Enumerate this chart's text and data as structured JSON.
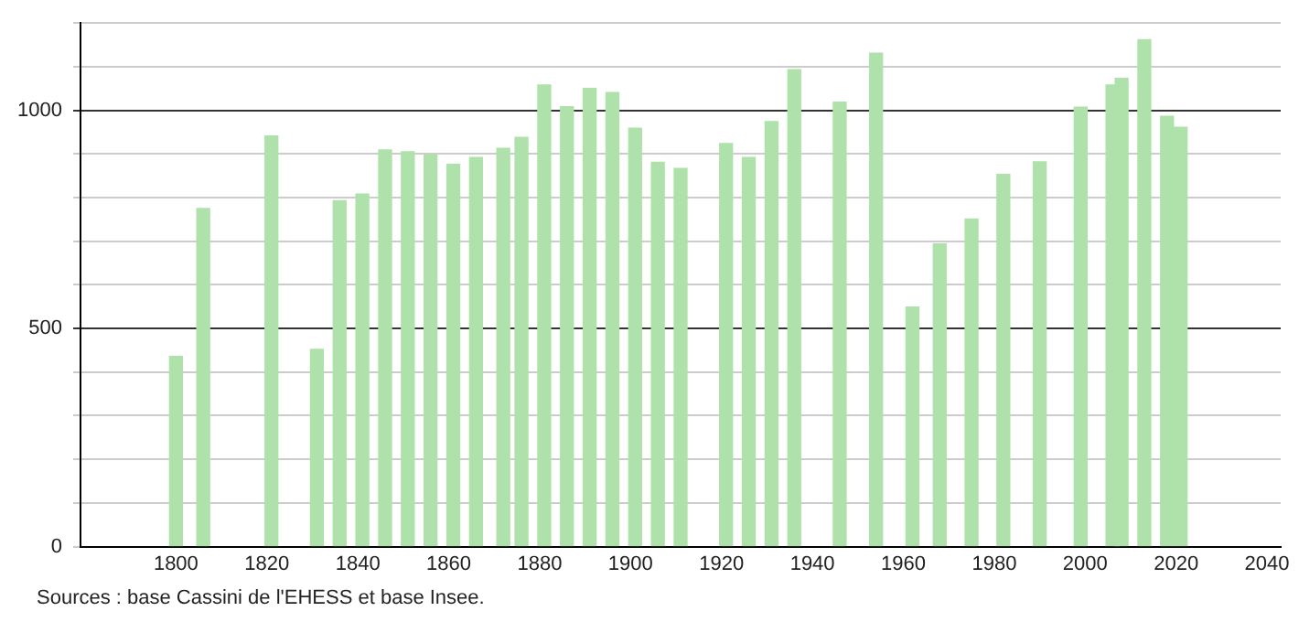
{
  "chart_data": {
    "type": "bar",
    "x": [
      1800,
      1806,
      1821,
      1831,
      1836,
      1841,
      1846,
      1851,
      1856,
      1861,
      1866,
      1872,
      1876,
      1881,
      1886,
      1891,
      1896,
      1901,
      1906,
      1911,
      1921,
      1926,
      1931,
      1936,
      1946,
      1954,
      1962,
      1968,
      1975,
      1982,
      1990,
      1999,
      2006,
      2008,
      2013,
      2018,
      2021
    ],
    "values": [
      436,
      775,
      941,
      452,
      793,
      808,
      909,
      905,
      898,
      876,
      892,
      913,
      938,
      1058,
      1008,
      1050,
      1041,
      959,
      881,
      867,
      924,
      892,
      974,
      1093,
      1019,
      1131,
      549,
      694,
      751,
      853,
      882,
      1007,
      1058,
      1073,
      1162,
      986,
      961
    ],
    "color": "#aee2aa",
    "xlim": [
      1779,
      2043
    ],
    "xticks": [
      1800,
      1820,
      1840,
      1860,
      1880,
      1900,
      1920,
      1940,
      1960,
      1980,
      2000,
      2020,
      2040
    ],
    "ylim": [
      0,
      1200
    ],
    "yticks": [
      0,
      {
        "value": 100,
        "label": null
      },
      {
        "value": 200,
        "label": null
      },
      {
        "value": 300,
        "label": null
      },
      {
        "value": 400,
        "label": null
      },
      500,
      {
        "value": 600,
        "label": null
      },
      {
        "value": 700,
        "label": null
      },
      {
        "value": 800,
        "label": null
      },
      {
        "value": 900,
        "label": null
      },
      1000,
      {
        "value": 1100,
        "label": null
      },
      {
        "value": 1200,
        "label": null
      }
    ],
    "grid": "y",
    "legend": false,
    "annotations": [
      "Sources : base Cassini de l'EHESS et base Insee."
    ]
  }
}
